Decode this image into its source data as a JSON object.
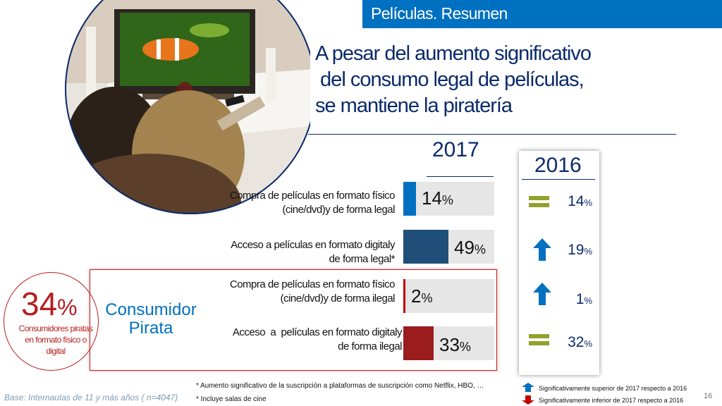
{
  "header": {
    "title": "Películas. Resumen"
  },
  "title_lines": [
    "A pesar del aumento significativo",
    " del consumo legal de películas,",
    "se mantiene la piratería"
  ],
  "years": {
    "current": "2017",
    "previous": "2016"
  },
  "rows": [
    {
      "label_line1": "Compra de películas en formato físico",
      "label_line2": "(cine/dvd)y de forma legal",
      "value": 14,
      "value_text": "14",
      "color": "#0070c0",
      "previous_value": "14",
      "trend": "equal"
    },
    {
      "label_line1": "Acceso a películas en formato digitaly",
      "label_line2": "de forma legal*",
      "value": 49,
      "value_text": "49",
      "color": "#1f4e79",
      "previous_value": "19",
      "trend": "up"
    },
    {
      "label_line1": "Compra de películas en formato físico",
      "label_line2": "(cine/dvd)y de forma ilegal",
      "value": 2,
      "value_text": "2",
      "color": "#c00000",
      "previous_value": "1",
      "trend": "up"
    },
    {
      "label_line1": "Acceso  a  películas en formato digitaly",
      "label_line2": "de forma ilegal",
      "value": 33,
      "value_text": "33",
      "color": "#9b1c1c",
      "previous_value": "32",
      "trend": "equal"
    }
  ],
  "percent_symbol": "%",
  "pirata": {
    "big_value": "34",
    "sub_text_line1": "Consumidores piratas",
    "sub_text_line2": "en formato físico o",
    "sub_text_line3": "digital",
    "label_line1": "Consumidor",
    "label_line2": "Pirata"
  },
  "footnotes": [
    "* Aumento significativo de la suscripción a plataformas de suscripción como Netflix, HBO, …",
    "* Incluye salas de cine"
  ],
  "base_note": "Base: Internautas de 11 y más años ( n=4047)",
  "legend": {
    "up": "Significativamente superior de 2017  respecto a 2016",
    "down": "Significativamente inferior de 2017  respecto a 2016"
  },
  "page_number": "16",
  "colors": {
    "brand_blue": "#0070c0",
    "navy": "#0a2a6b",
    "pirate_red": "#b51f1f",
    "equal_green": "#92a12a"
  }
}
